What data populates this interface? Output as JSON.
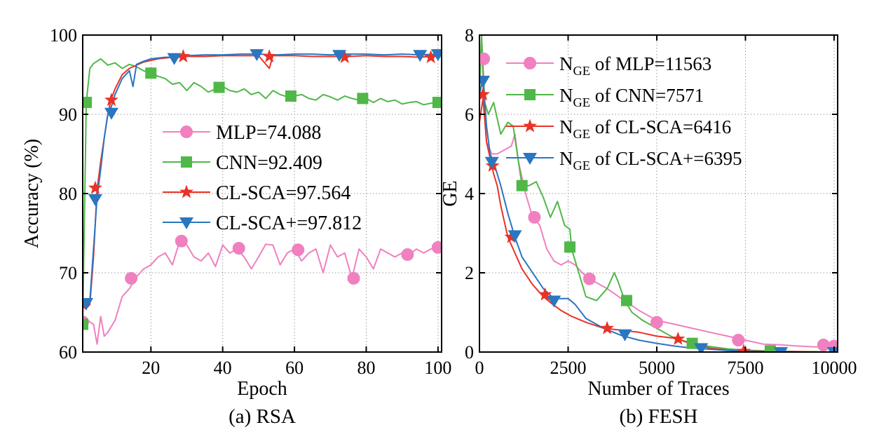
{
  "chart_data": [
    {
      "type": "line",
      "caption": "(a) RSA",
      "xlabel": "Epoch",
      "ylabel": "Accuracy (%)",
      "xlim": [
        1,
        101
      ],
      "ylim": [
        60,
        100
      ],
      "xticks": [
        20,
        40,
        60,
        80,
        100
      ],
      "yticks": [
        60,
        70,
        80,
        90,
        100
      ],
      "legend_position": "center-right",
      "series": [
        {
          "name": "MLP",
          "label": "MLP=74.088",
          "color": "#f080bf",
          "marker": "circle",
          "x": [
            1,
            2,
            3,
            4,
            5,
            6,
            7,
            8,
            10,
            12,
            14,
            16,
            18,
            20,
            22,
            24,
            26,
            28,
            30,
            32,
            34,
            36,
            38,
            40,
            42,
            44,
            46,
            48,
            50,
            52,
            54,
            56,
            58,
            60,
            62,
            64,
            66,
            68,
            70,
            72,
            74,
            76,
            78,
            80,
            82,
            84,
            86,
            88,
            90,
            92,
            94,
            96,
            98,
            100
          ],
          "y": [
            64,
            64.2,
            63.8,
            63.5,
            61,
            64.5,
            62,
            62.5,
            64,
            67,
            68,
            69.5,
            70.5,
            71,
            72,
            72.5,
            71,
            74,
            73.5,
            72,
            71.5,
            72.5,
            70.8,
            73.5,
            72.5,
            73,
            72,
            70.5,
            72,
            73.6,
            73.5,
            71,
            72.5,
            73,
            71.5,
            72.5,
            73,
            70,
            73.5,
            72,
            72.5,
            69.3,
            73,
            72,
            70.5,
            73,
            72.5,
            72,
            72.5,
            72.3,
            73,
            72.5,
            73,
            73.2
          ],
          "markers": [
            [
              1,
              63.8
            ],
            [
              14.5,
              69.3
            ],
            [
              28.5,
              74
            ],
            [
              44.5,
              73.1
            ],
            [
              61,
              72.9
            ],
            [
              76.5,
              69.3
            ],
            [
              91.5,
              72.3
            ],
            [
              100,
              73.2
            ]
          ]
        },
        {
          "name": "CNN",
          "label": "CNN=92.409",
          "color": "#4fb848",
          "marker": "square",
          "x": [
            1,
            2,
            3,
            4,
            5,
            6,
            8,
            10,
            12,
            14,
            16,
            18,
            20,
            22,
            24,
            26,
            28,
            30,
            32,
            34,
            36,
            38,
            40,
            42,
            44,
            46,
            48,
            50,
            52,
            54,
            56,
            58,
            60,
            62,
            64,
            66,
            68,
            70,
            72,
            74,
            76,
            78,
            80,
            82,
            84,
            86,
            88,
            90,
            92,
            94,
            96,
            98,
            100
          ],
          "y": [
            63.5,
            91.5,
            95.8,
            96.4,
            96.7,
            97,
            96.2,
            96.5,
            95.8,
            96.3,
            96,
            95.5,
            95.2,
            94.8,
            94.5,
            93.8,
            94,
            93,
            94,
            93.5,
            92.8,
            93.2,
            93.5,
            93,
            92.8,
            93.2,
            92.5,
            92.8,
            92,
            93,
            92.5,
            92.2,
            92.3,
            92.5,
            92,
            91.8,
            92.5,
            92.2,
            91.8,
            92.3,
            92,
            91.8,
            92,
            91.5,
            92,
            91.6,
            91.8,
            91.3,
            91.5,
            91.6,
            91.2,
            91.4,
            91.5
          ],
          "markers": [
            [
              1,
              63.5
            ],
            [
              2,
              91.5
            ],
            [
              20,
              95.2
            ],
            [
              39,
              93.4
            ],
            [
              59,
              92.3
            ],
            [
              79,
              92
            ],
            [
              100,
              91.5
            ]
          ]
        },
        {
          "name": "CL-SCA",
          "label": "CL-SCA=97.564",
          "color": "#ea3227",
          "marker": "star",
          "x": [
            1,
            2,
            3,
            4,
            5,
            6,
            7,
            8,
            9,
            10,
            12,
            14,
            16,
            18,
            20,
            22,
            24,
            26,
            28,
            30,
            35,
            40,
            45,
            50,
            53,
            54,
            55,
            60,
            65,
            70,
            75,
            80,
            85,
            90,
            95,
            100
          ],
          "y": [
            66,
            65.5,
            66,
            72,
            80.5,
            84,
            87,
            90,
            92,
            93.2,
            95,
            95.8,
            96.2,
            96.6,
            96.8,
            97,
            97.1,
            97.2,
            97.2,
            97.3,
            97.3,
            97.4,
            97.4,
            97.4,
            95.8,
            97.4,
            97.4,
            97.4,
            97.3,
            97.3,
            97.3,
            97.4,
            97.3,
            97.3,
            97.2,
            97.4
          ],
          "markers": [
            [
              1,
              66
            ],
            [
              4.5,
              80.7
            ],
            [
              9,
              91.8
            ],
            [
              29,
              97.3
            ],
            [
              53,
              97.3
            ],
            [
              74,
              97.2
            ],
            [
              98,
              97.2
            ]
          ]
        },
        {
          "name": "CL-SCA+",
          "label": "CL-SCA+=97.812",
          "color": "#2a76c0",
          "marker": "triangle-down",
          "x": [
            1,
            2,
            3,
            4,
            5,
            6,
            7,
            8,
            9,
            10,
            12,
            14,
            15,
            16,
            18,
            20,
            22,
            24,
            26,
            28,
            30,
            35,
            40,
            45,
            50,
            55,
            60,
            65,
            70,
            75,
            80,
            85,
            90,
            95,
            100
          ],
          "y": [
            66.3,
            66.5,
            66.5,
            73,
            79.5,
            83,
            87,
            90,
            91,
            92.5,
            94.5,
            95.5,
            93.5,
            96.3,
            96.7,
            97,
            97.1,
            97.2,
            97.2,
            97.3,
            97.4,
            97.5,
            97.5,
            97.6,
            97.6,
            97.5,
            97.6,
            97.6,
            97.5,
            97.6,
            97.6,
            97.5,
            97.6,
            97.5,
            97.6
          ],
          "markers": [
            [
              2,
              66.2
            ],
            [
              4.5,
              79.3
            ],
            [
              9,
              90.2
            ],
            [
              26.5,
              97.1
            ],
            [
              49.5,
              97.6
            ],
            [
              72.5,
              97.5
            ],
            [
              95,
              97.5
            ],
            [
              100,
              97.6
            ]
          ]
        }
      ]
    },
    {
      "type": "line",
      "caption": "(b) FESH",
      "xlabel": "Number of Traces",
      "ylabel": "GE",
      "xlim": [
        0,
        10100
      ],
      "ylim": [
        0,
        8
      ],
      "xticks": [
        0,
        2500,
        5000,
        7500,
        10000
      ],
      "yticks": [
        0,
        2,
        4,
        6,
        8
      ],
      "legend_position": "top-right",
      "series": [
        {
          "name": "MLP",
          "label_prefix": "N",
          "label_sub": "GE",
          "label_rest": " of MLP=11563",
          "color": "#f080bf",
          "marker": "circle",
          "x": [
            0,
            80,
            120,
            200,
            350,
            500,
            700,
            900,
            1000,
            1100,
            1300,
            1500,
            1700,
            1900,
            2100,
            2300,
            2500,
            2700,
            2900,
            3100,
            3300,
            3600,
            4000,
            4500,
            5000,
            5500,
            6000,
            6500,
            7000,
            7500,
            8000,
            8500,
            9000,
            9500,
            10000
          ],
          "y": [
            7.2,
            7.4,
            6.3,
            5.3,
            5.0,
            5.0,
            5.1,
            5.2,
            5.5,
            4.8,
            4.0,
            3.4,
            3.2,
            2.6,
            2.3,
            2.2,
            2.3,
            2.2,
            2.0,
            1.85,
            1.75,
            1.6,
            1.35,
            1.05,
            0.8,
            0.7,
            0.6,
            0.5,
            0.4,
            0.3,
            0.2,
            0.18,
            0.15,
            0.13,
            0.15
          ],
          "markers": [
            [
              120,
              7.4
            ],
            [
              1550,
              3.4
            ],
            [
              3100,
              1.85
            ],
            [
              5000,
              0.75
            ],
            [
              7300,
              0.3
            ],
            [
              9700,
              0.18
            ],
            [
              10000,
              0.15
            ]
          ]
        },
        {
          "name": "CNN",
          "label_prefix": "N",
          "label_sub": "GE",
          "label_rest": " of CNN=7571",
          "color": "#4fb848",
          "marker": "square",
          "x": [
            0,
            60,
            100,
            150,
            250,
            400,
            600,
            800,
            950,
            1100,
            1200,
            1400,
            1600,
            1800,
            2000,
            2200,
            2400,
            2550,
            2600,
            2800,
            3000,
            3300,
            3600,
            3800,
            3900,
            4100,
            4300,
            4600,
            5000,
            5500,
            6000,
            6500,
            7000,
            7500,
            8000,
            8500,
            9000,
            9500,
            10000
          ],
          "y": [
            6.5,
            8.0,
            7.2,
            6.3,
            6.0,
            6.3,
            5.5,
            5.8,
            5.7,
            4.8,
            4.2,
            4.2,
            4.3,
            3.9,
            3.4,
            3.8,
            3.2,
            3.1,
            2.6,
            2.0,
            1.4,
            1.3,
            1.6,
            2.0,
            1.8,
            1.3,
            1.0,
            0.8,
            0.6,
            0.35,
            0.22,
            0.14,
            0.08,
            0.05,
            0.03,
            0.02,
            0.01,
            0.01,
            0.0
          ],
          "markers": [
            [
              1200,
              4.2
            ],
            [
              2550,
              2.65
            ],
            [
              4150,
              1.3
            ],
            [
              6000,
              0.22
            ],
            [
              8200,
              0.03
            ]
          ]
        },
        {
          "name": "CL-SCA",
          "label_prefix": "N",
          "label_sub": "GE",
          "label_rest": " of CL-SCA=6416",
          "color": "#ea3227",
          "marker": "star",
          "x": [
            0,
            100,
            200,
            300,
            400,
            500,
            600,
            700,
            800,
            1000,
            1200,
            1500,
            1800,
            2000,
            2300,
            2600,
            3000,
            3500,
            4000,
            4500,
            5000,
            5500,
            6000,
            6500,
            7000,
            7500,
            8000,
            8500,
            9000,
            9500,
            10000
          ],
          "y": [
            5.8,
            6.4,
            5.3,
            4.9,
            4.5,
            4.2,
            3.7,
            3.3,
            2.9,
            2.5,
            2.1,
            1.7,
            1.4,
            1.25,
            1.05,
            0.9,
            0.75,
            0.6,
            0.55,
            0.5,
            0.4,
            0.35,
            0.2,
            0.1,
            0.05,
            0.03,
            0.02,
            0.01,
            0.01,
            0.0,
            0.0
          ],
          "markers": [
            [
              100,
              6.5
            ],
            [
              370,
              4.7
            ],
            [
              900,
              2.9
            ],
            [
              1850,
              1.45
            ],
            [
              3600,
              0.6
            ],
            [
              5600,
              0.33
            ],
            [
              7450,
              0.02
            ]
          ]
        },
        {
          "name": "CL-SCA+",
          "label_prefix": "N",
          "label_sub": "GE",
          "label_rest": " of CL-SCA+=6395",
          "color": "#2a76c0",
          "marker": "triangle-down",
          "x": [
            0,
            100,
            200,
            300,
            400,
            600,
            800,
            1000,
            1200,
            1500,
            1800,
            2100,
            2500,
            2700,
            3000,
            3500,
            4000,
            4500,
            5000,
            5500,
            6000,
            6500,
            7000,
            7500,
            8000,
            8500,
            9000,
            9500,
            10000
          ],
          "y": [
            6.5,
            6.9,
            5.7,
            5.0,
            4.8,
            4.2,
            3.5,
            2.9,
            2.4,
            2.0,
            1.6,
            1.35,
            1.35,
            1.2,
            0.85,
            0.6,
            0.42,
            0.3,
            0.22,
            0.15,
            0.1,
            0.07,
            0.04,
            0.02,
            0.01,
            0.01,
            0.0,
            0.0,
            0.0
          ],
          "markers": [
            [
              100,
              6.85
            ],
            [
              350,
              4.8
            ],
            [
              1000,
              2.95
            ],
            [
              2100,
              1.3
            ],
            [
              4100,
              0.45
            ],
            [
              6250,
              0.1
            ],
            [
              8500,
              0.0
            ],
            [
              10000,
              0.0
            ]
          ]
        }
      ]
    }
  ]
}
